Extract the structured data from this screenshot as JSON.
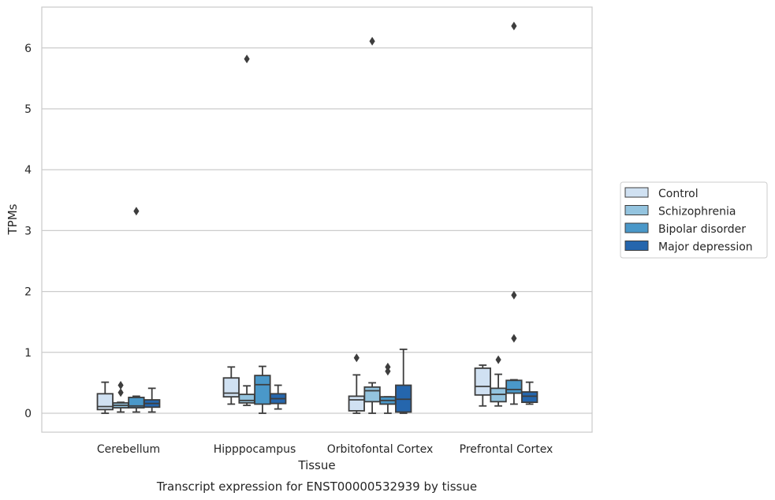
{
  "chart_data": {
    "type": "box",
    "title": "",
    "caption": "Transcript expression for ENST00000532939 by tissue",
    "xlabel": "Tissue",
    "ylabel": "TPMs",
    "ylim": [
      -0.3,
      6.65
    ],
    "yticks": [
      0,
      1,
      2,
      3,
      4,
      5,
      6
    ],
    "grid": "horizontal",
    "legend_position": "right",
    "categories": [
      "Cerebellum",
      "Hipppocampus",
      "Orbitofontal Cortex",
      "Prefrontal Cortex"
    ],
    "series": [
      {
        "name": "Control",
        "color": "#d0e1f2",
        "boxes": [
          {
            "whislo": 0.0,
            "q1": 0.06,
            "med": 0.11,
            "q3": 0.32,
            "whishi": 0.51,
            "fliers": []
          },
          {
            "whislo": 0.15,
            "q1": 0.27,
            "med": 0.33,
            "q3": 0.58,
            "whishi": 0.76,
            "fliers": []
          },
          {
            "whislo": 0.0,
            "q1": 0.04,
            "med": 0.22,
            "q3": 0.28,
            "whishi": 0.63,
            "fliers": [
              0.91
            ]
          },
          {
            "whislo": 0.12,
            "q1": 0.3,
            "med": 0.44,
            "q3": 0.74,
            "whishi": 0.79,
            "fliers": []
          }
        ]
      },
      {
        "name": "Schizophrenia",
        "color": "#94c4df",
        "boxes": [
          {
            "whislo": 0.02,
            "q1": 0.09,
            "med": 0.13,
            "q3": 0.17,
            "whishi": 0.18,
            "fliers": [
              0.34,
              0.46
            ]
          },
          {
            "whislo": 0.13,
            "q1": 0.17,
            "med": 0.21,
            "q3": 0.31,
            "whishi": 0.45,
            "fliers": [
              5.82
            ]
          },
          {
            "whislo": 0.0,
            "q1": 0.19,
            "med": 0.37,
            "q3": 0.43,
            "whishi": 0.5,
            "fliers": [
              6.11
            ]
          },
          {
            "whislo": 0.12,
            "q1": 0.19,
            "med": 0.31,
            "q3": 0.41,
            "whishi": 0.64,
            "fliers": [
              0.88
            ]
          }
        ]
      },
      {
        "name": "Bipolar disorder",
        "color": "#4a98c9",
        "boxes": [
          {
            "whislo": 0.02,
            "q1": 0.09,
            "med": 0.12,
            "q3": 0.26,
            "whishi": 0.28,
            "fliers": [
              3.32
            ]
          },
          {
            "whislo": 0.0,
            "q1": 0.15,
            "med": 0.47,
            "q3": 0.62,
            "whishi": 0.77,
            "fliers": []
          },
          {
            "whislo": 0.0,
            "q1": 0.15,
            "med": 0.21,
            "q3": 0.27,
            "whishi": 0.27,
            "fliers": [
              0.69,
              0.76
            ]
          },
          {
            "whislo": 0.15,
            "q1": 0.33,
            "med": 0.39,
            "q3": 0.54,
            "whishi": 0.55,
            "fliers": [
              1.23,
              1.94,
              6.36
            ]
          }
        ]
      },
      {
        "name": "Major depression",
        "color": "#2566ad",
        "boxes": [
          {
            "whislo": 0.02,
            "q1": 0.1,
            "med": 0.16,
            "q3": 0.22,
            "whishi": 0.41,
            "fliers": []
          },
          {
            "whislo": 0.07,
            "q1": 0.16,
            "med": 0.24,
            "q3": 0.32,
            "whishi": 0.46,
            "fliers": []
          },
          {
            "whislo": 0.0,
            "q1": 0.02,
            "med": 0.23,
            "q3": 0.46,
            "whishi": 1.05,
            "fliers": []
          },
          {
            "whislo": 0.15,
            "q1": 0.18,
            "med": 0.28,
            "q3": 0.35,
            "whishi": 0.51,
            "fliers": []
          }
        ]
      }
    ]
  }
}
